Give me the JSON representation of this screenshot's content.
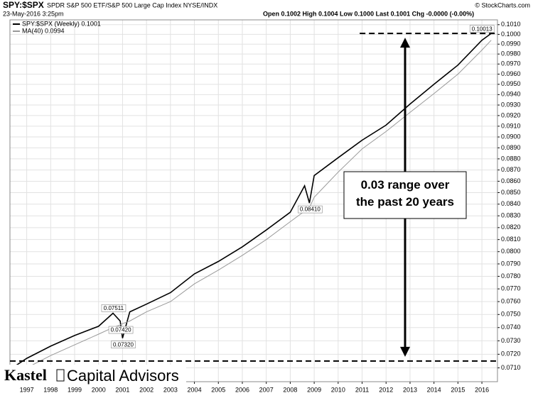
{
  "chart_data": {
    "type": "line",
    "title": "SPY:$SPX",
    "subtitle": "SPDR S&P 500 ETF/S&P 500 Large Cap Index NYSE/INDX",
    "date_label": "23-May-2016 3:25pm",
    "quote": "Open 0.1002 High 0.1004 Low 0.1000 Last 0.1001 Chg -0.0000 (-0.00%)",
    "source": "© StockCharts.com",
    "logo": {
      "name": "Kastel",
      "suffix": "Capital Advisors"
    },
    "callout": "0.03 range over the past 20 years",
    "log_scale": true,
    "grid": true,
    "x": [
      1996.4,
      1997,
      1998,
      1999,
      2000,
      2000.6,
      2000.9,
      2001.0,
      2001.3,
      2002,
      2003,
      2004,
      2005,
      2006,
      2007,
      2008,
      2008.6,
      2008.8,
      2009,
      2010,
      2011,
      2012,
      2013,
      2014,
      2015,
      2016,
      2016.39
    ],
    "series": [
      {
        "name": "SPY:$SPX (Weekly) 0.1001",
        "color": "#000000",
        "values": [
          0.071,
          0.0717,
          0.0726,
          0.0734,
          0.0741,
          0.0751,
          0.0745,
          0.0732,
          0.0752,
          0.0758,
          0.0767,
          0.0782,
          0.0792,
          0.0804,
          0.0818,
          0.0833,
          0.0856,
          0.0841,
          0.0865,
          0.0881,
          0.0897,
          0.0911,
          0.0931,
          0.095,
          0.0969,
          0.0994,
          0.1001
        ]
      },
      {
        "name": "MA(40) 0.0994",
        "color": "#999999",
        "values": [
          null,
          0.071,
          0.0719,
          0.0727,
          0.0735,
          0.074,
          0.0742,
          0.0743,
          0.0745,
          0.0752,
          0.076,
          0.0774,
          0.0785,
          0.0797,
          0.081,
          0.0825,
          0.0834,
          0.0837,
          0.0846,
          0.0868,
          0.0889,
          0.0905,
          0.0923,
          0.0941,
          0.096,
          0.0984,
          0.0994
        ]
      }
    ],
    "annotations": [
      {
        "label": "0.07511",
        "x": 2000.6,
        "y": 0.07511
      },
      {
        "label": "0.07420",
        "x": 2000.9,
        "y": 0.0742
      },
      {
        "label": "0.07320",
        "x": 2001.0,
        "y": 0.0732
      },
      {
        "label": "0.08410",
        "x": 2008.8,
        "y": 0.0841
      },
      {
        "label": "0.10013",
        "x": 2016.39,
        "y": 0.10013
      }
    ],
    "reference_lines": [
      {
        "value": 0.1001,
        "x_start": 2010.9
      },
      {
        "value": 0.0715,
        "x_start": 1996.3
      }
    ],
    "xlim": [
      1996.3,
      2016.65
    ],
    "xticks": [
      1997,
      1998,
      1999,
      2000,
      2001,
      2002,
      2003,
      2004,
      2005,
      2006,
      2007,
      2008,
      2009,
      2010,
      2011,
      2012,
      2013,
      2014,
      2015,
      2016
    ],
    "ylim": [
      0.07,
      0.1015
    ],
    "yticks": [
      {
        "value": 0.071,
        "label": "0.0710"
      },
      {
        "value": 0.072,
        "label": "0.0720"
      },
      {
        "value": 0.073,
        "label": "0.0730"
      },
      {
        "value": 0.074,
        "label": "0.0740"
      },
      {
        "value": 0.075,
        "label": "0.0750"
      },
      {
        "value": 0.076,
        "label": "0.0760"
      },
      {
        "value": 0.077,
        "label": "0.0770"
      },
      {
        "value": 0.078,
        "label": "0.0780"
      },
      {
        "value": 0.079,
        "label": "0.0790"
      },
      {
        "value": 0.08,
        "label": "0.0800"
      },
      {
        "value": 0.081,
        "label": "0.0810"
      },
      {
        "value": 0.082,
        "label": "0.0820"
      },
      {
        "value": 0.083,
        "label": "0.0830"
      },
      {
        "value": 0.084,
        "label": "0.0840"
      },
      {
        "value": 0.085,
        "label": "0.0850"
      },
      {
        "value": 0.086,
        "label": "0.0860"
      },
      {
        "value": 0.087,
        "label": "0.0870"
      },
      {
        "value": 0.088,
        "label": "0.0880"
      },
      {
        "value": 0.089,
        "label": "0.0890"
      },
      {
        "value": 0.09,
        "label": "0.0900"
      },
      {
        "value": 0.091,
        "label": "0.0910"
      },
      {
        "value": 0.092,
        "label": "0.0920"
      },
      {
        "value": 0.093,
        "label": "0.0930"
      },
      {
        "value": 0.094,
        "label": "0.0940"
      },
      {
        "value": 0.095,
        "label": "0.0950"
      },
      {
        "value": 0.096,
        "label": "0.0960"
      },
      {
        "value": 0.097,
        "label": "0.0970"
      },
      {
        "value": 0.098,
        "label": "0.0980"
      },
      {
        "value": 0.099,
        "label": "0.0990"
      },
      {
        "value": 0.1,
        "label": "0.1000"
      },
      {
        "value": 0.101,
        "label": "0.1010"
      }
    ]
  }
}
